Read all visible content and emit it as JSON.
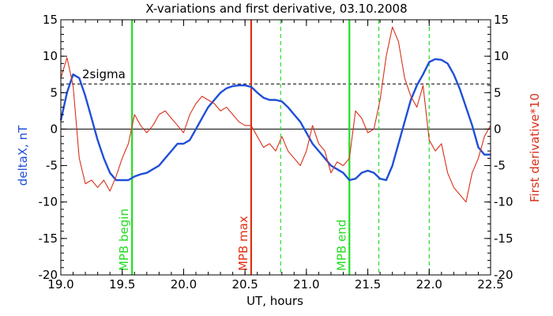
{
  "chart_data": {
    "type": "line",
    "title": "X-variations and first derivative, 03.10.2008",
    "xlabel": "UT, hours",
    "ylabel_left": "deltaX, nT",
    "ylabel_right": "First derivative*10",
    "xlim": [
      19.0,
      22.5
    ],
    "ylim": [
      -20,
      15
    ],
    "x_ticks": [
      19.0,
      19.5,
      20.0,
      20.5,
      21.0,
      21.5,
      22.0,
      22.5
    ],
    "x_tick_labels": [
      "19.0",
      "19.5",
      "20.0",
      "20.5",
      "21.0",
      "21.5",
      "22.0",
      "22.5"
    ],
    "y_ticks": [
      15,
      10,
      5,
      0,
      -5,
      -10,
      -15,
      -20
    ],
    "y_tick_labels": [
      "15",
      "10",
      "5",
      "0",
      "-5",
      "-10",
      "-15",
      "-20"
    ],
    "zero_line": 0,
    "threshold": {
      "label": "2sigma",
      "value": 6.2
    },
    "colors": {
      "deltaX": "#1f4fd8",
      "derivative": "#d8301a",
      "mpb_edge": "#22dd22",
      "mpb_max": "#e03010",
      "axes": "#000000"
    },
    "series": [
      {
        "key": "deltaX",
        "x": [
          19.0,
          19.05,
          19.1,
          19.15,
          19.2,
          19.25,
          19.3,
          19.35,
          19.4,
          19.45,
          19.5,
          19.55,
          19.6,
          19.65,
          19.7,
          19.75,
          19.8,
          19.85,
          19.9,
          19.95,
          20.0,
          20.05,
          20.1,
          20.15,
          20.2,
          20.25,
          20.3,
          20.35,
          20.4,
          20.45,
          20.5,
          20.55,
          20.6,
          20.65,
          20.7,
          20.75,
          20.8,
          20.85,
          20.9,
          20.95,
          21.0,
          21.05,
          21.1,
          21.15,
          21.2,
          21.25,
          21.3,
          21.35,
          21.4,
          21.45,
          21.5,
          21.55,
          21.6,
          21.65,
          21.7,
          21.75,
          21.8,
          21.85,
          21.9,
          21.95,
          22.0,
          22.05,
          22.1,
          22.15,
          22.2,
          22.25,
          22.3,
          22.35,
          22.4,
          22.45,
          22.5
        ],
        "values": [
          1.2,
          5.0,
          7.5,
          7.0,
          4.5,
          1.5,
          -1.5,
          -4.0,
          -6.0,
          -7.0,
          -7.0,
          -7.0,
          -6.5,
          -6.2,
          -6.0,
          -5.5,
          -5.0,
          -4.0,
          -3.0,
          -2.0,
          -2.0,
          -1.5,
          0.0,
          1.5,
          3.0,
          4.0,
          5.0,
          5.6,
          5.9,
          6.0,
          6.0,
          5.8,
          5.0,
          4.3,
          4.0,
          4.0,
          3.8,
          3.0,
          2.0,
          1.0,
          -0.5,
          -2.0,
          -3.0,
          -4.0,
          -5.0,
          -5.5,
          -6.0,
          -7.0,
          -6.8,
          -6.0,
          -5.7,
          -6.0,
          -6.8,
          -7.0,
          -5.0,
          -2.0,
          1.0,
          4.0,
          6.0,
          7.5,
          9.2,
          9.6,
          9.5,
          9.0,
          7.5,
          5.5,
          3.0,
          0.5,
          -2.5,
          -3.5,
          -3.5
        ]
      },
      {
        "key": "derivative",
        "x": [
          19.0,
          19.05,
          19.1,
          19.15,
          19.2,
          19.25,
          19.3,
          19.35,
          19.4,
          19.45,
          19.5,
          19.55,
          19.6,
          19.65,
          19.7,
          19.75,
          19.8,
          19.85,
          19.9,
          19.95,
          20.0,
          20.05,
          20.1,
          20.15,
          20.2,
          20.25,
          20.3,
          20.35,
          20.4,
          20.45,
          20.5,
          20.55,
          20.6,
          20.65,
          20.7,
          20.75,
          20.8,
          20.85,
          20.9,
          20.95,
          21.0,
          21.05,
          21.1,
          21.15,
          21.2,
          21.25,
          21.3,
          21.35,
          21.4,
          21.45,
          21.5,
          21.55,
          21.6,
          21.65,
          21.7,
          21.75,
          21.8,
          21.85,
          21.9,
          21.95,
          22.0,
          22.05,
          22.1,
          22.15,
          22.2,
          22.25,
          22.3,
          22.35,
          22.4,
          22.45,
          22.5
        ],
        "values": [
          7.0,
          9.8,
          6.0,
          -4.0,
          -7.5,
          -7.0,
          -8.0,
          -7.0,
          -8.5,
          -6.5,
          -4.0,
          -2.0,
          2.0,
          0.5,
          -0.5,
          0.5,
          2.0,
          2.5,
          1.5,
          0.5,
          -0.5,
          2.0,
          3.5,
          4.5,
          4.0,
          3.5,
          2.5,
          3.0,
          2.0,
          1.0,
          0.5,
          0.5,
          -1.0,
          -2.5,
          -2.0,
          -3.0,
          -1.0,
          -3.0,
          -4.0,
          -5.0,
          -3.0,
          0.5,
          -2.0,
          -3.0,
          -6.0,
          -4.5,
          -5.0,
          -4.0,
          2.5,
          1.5,
          -0.5,
          0.0,
          4.0,
          10.0,
          14.0,
          12.0,
          7.0,
          4.5,
          3.0,
          6.0,
          -1.5,
          -3.0,
          -2.0,
          -6.0,
          -8.0,
          -9.0,
          -10.0,
          -6.0,
          -4.0,
          -1.0,
          0.5
        ]
      }
    ],
    "markers": [
      {
        "x": 19.58,
        "label": "MPB begin",
        "kind": "edge",
        "style": "solid"
      },
      {
        "x": 20.55,
        "label": "MPB max",
        "kind": "max",
        "style": "solid"
      },
      {
        "x": 21.35,
        "label": "MPB end",
        "kind": "edge",
        "style": "solid"
      },
      {
        "x": 20.79,
        "label": "",
        "kind": "edge",
        "style": "dashed"
      },
      {
        "x": 21.59,
        "label": "",
        "kind": "edge",
        "style": "dashed"
      },
      {
        "x": 22.0,
        "label": "",
        "kind": "edge",
        "style": "dashed"
      }
    ]
  }
}
